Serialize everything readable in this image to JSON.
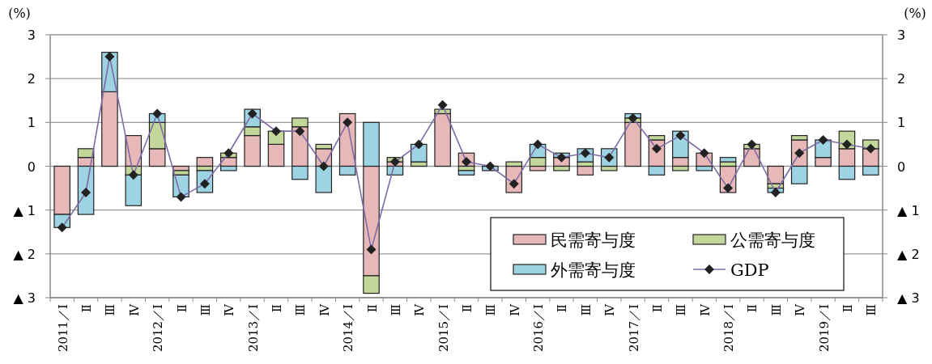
{
  "chart_data": {
    "type": "bar",
    "stacked": true,
    "ylabel": "(%)",
    "y2label": "(%)",
    "categories": [
      "2011／Ⅰ",
      "Ⅱ",
      "Ⅲ",
      "Ⅳ",
      "2012／Ⅰ",
      "Ⅱ",
      "Ⅲ",
      "Ⅳ",
      "2013／Ⅰ",
      "Ⅱ",
      "Ⅲ",
      "Ⅳ",
      "2014／Ⅰ",
      "Ⅱ",
      "Ⅲ",
      "Ⅳ",
      "2015／Ⅰ",
      "Ⅱ",
      "Ⅲ",
      "Ⅳ",
      "2016／Ⅰ",
      "Ⅱ",
      "Ⅲ",
      "Ⅳ",
      "2017／Ⅰ",
      "Ⅱ",
      "Ⅲ",
      "Ⅳ",
      "2018／Ⅰ",
      "Ⅱ",
      "Ⅲ",
      "Ⅳ",
      "2019／Ⅰ",
      "Ⅱ",
      "Ⅲ"
    ],
    "series": [
      {
        "name": "民需寄与度",
        "color": "#e6b9b8",
        "values": [
          -1.1,
          0.2,
          1.7,
          0.7,
          0.4,
          -0.1,
          0.2,
          0.2,
          0.7,
          0.5,
          0.9,
          0.4,
          1.2,
          -2.5,
          0.1,
          0,
          1.2,
          0.3,
          0,
          -0.6,
          -0.1,
          0.2,
          -0.2,
          0,
          1.0,
          0.6,
          0.2,
          0.3,
          -0.6,
          0.4,
          -0.4,
          0.6,
          0.2,
          0.4,
          0.4
        ]
      },
      {
        "name": "公需寄与度",
        "color": "#c4d79b",
        "values": [
          0,
          0.2,
          0,
          -0.2,
          0.6,
          -0.1,
          -0.1,
          0.1,
          0.2,
          0.3,
          0.2,
          0.1,
          0,
          -0.4,
          0.1,
          0.1,
          0.1,
          -0.1,
          0,
          0.1,
          0.2,
          -0.1,
          0.1,
          -0.1,
          0.1,
          0.1,
          -0.1,
          0,
          0.1,
          0.1,
          -0.1,
          0.1,
          0,
          0.4,
          0.2
        ]
      },
      {
        "name": "外需寄与度",
        "color": "#9dd3e3",
        "values": [
          -0.3,
          -1.1,
          0.9,
          -0.7,
          0.2,
          -0.5,
          -0.5,
          -0.1,
          0.4,
          0,
          -0.3,
          -0.6,
          -0.2,
          1.0,
          -0.2,
          0.4,
          0,
          -0.1,
          -0.1,
          0,
          0.3,
          0.1,
          0.3,
          0.4,
          0.1,
          -0.2,
          0.6,
          -0.1,
          0.1,
          0,
          -0.1,
          -0.4,
          0.4,
          -0.3,
          -0.2
        ]
      },
      {
        "name": "GDP",
        "type": "line",
        "color": "#7f6aa8",
        "marker": "diamond",
        "values": [
          -1.4,
          -0.6,
          2.5,
          -0.2,
          1.2,
          -0.7,
          -0.4,
          0.3,
          1.2,
          0.8,
          0.8,
          0,
          1.0,
          -1.9,
          0.1,
          0.5,
          1.4,
          0.1,
          0,
          -0.4,
          0.5,
          0.2,
          0.3,
          0.2,
          1.1,
          0.4,
          0.7,
          0.3,
          -0.5,
          0.5,
          -0.6,
          0.3,
          0.6,
          0.5,
          0.4
        ]
      }
    ],
    "ylim": [
      -3,
      3
    ],
    "yticks": [
      3,
      2,
      1,
      0,
      {
        "value": -1,
        "label": "▲ 1"
      },
      {
        "value": -2,
        "label": "▲ 2"
      },
      {
        "value": -3,
        "label": "▲ 3"
      }
    ],
    "y2lim": [
      -3,
      3
    ],
    "y2ticks": [
      3,
      2,
      1,
      0,
      {
        "value": -1,
        "label": "▲ 1"
      },
      {
        "value": -2,
        "label": "▲ 2"
      },
      {
        "value": -3,
        "label": "▲ 3"
      }
    ],
    "grid": "y",
    "legend": "bottom right"
  }
}
